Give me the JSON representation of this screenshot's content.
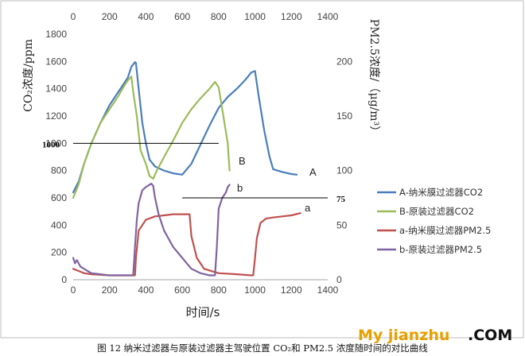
{
  "caption": "图 12 纳米过滤器与原装过滤器主驾驶位置 CO₂和 PM2.5 浓度随时间的对比曲线",
  "watermark": {
    "part1": "My jianzhu",
    "part2": ".COM"
  },
  "chart_data": {
    "type": "line",
    "xlabel": "时间/s",
    "ylabel_left": "CO₂浓度/ppm",
    "ylabel_right": "PM2.5浓度/（μg/m³）",
    "xlim": [
      0,
      1400
    ],
    "ylim_left": [
      0,
      1800
    ],
    "ylim_right": [
      0,
      225
    ],
    "x_ticks": [
      "0",
      "200",
      "400",
      "600",
      "800",
      "1000",
      "1200",
      "1400"
    ],
    "y_left_ticks": [
      "0",
      "200",
      "400",
      "600",
      "800",
      "1000",
      "1200",
      "1400",
      "1600",
      "1800"
    ],
    "y_right_ticks": [
      "0",
      "50",
      "75",
      "100",
      "150",
      "200"
    ],
    "grid": false,
    "legend_position": "right",
    "annotations": {
      "ref_1000": "1000",
      "ref_75": "75",
      "label_A": "A",
      "label_B": "B",
      "label_a": "a",
      "label_b": "b"
    },
    "reference_lines": [
      {
        "axis": "left",
        "y": 1000,
        "x_range": [
          0,
          800
        ]
      },
      {
        "axis": "right",
        "y": 75,
        "x_range": [
          600,
          1400
        ]
      }
    ],
    "series": [
      {
        "name": "A-纳米膜过滤器CO2",
        "axis": "left",
        "color": "#4a7ebb",
        "x": [
          0,
          30,
          60,
          100,
          150,
          200,
          250,
          300,
          320,
          340,
          345,
          360,
          380,
          400,
          420,
          450,
          500,
          550,
          600,
          650,
          700,
          750,
          800,
          850,
          900,
          950,
          980,
          1000,
          1020,
          1050,
          1080,
          1100,
          1150,
          1200,
          1230
        ],
        "y": [
          640,
          720,
          850,
          1000,
          1150,
          1280,
          1380,
          1480,
          1560,
          1595,
          1590,
          1400,
          1150,
          1000,
          880,
          830,
          800,
          780,
          770,
          850,
          990,
          1130,
          1260,
          1340,
          1400,
          1470,
          1520,
          1530,
          1350,
          1100,
          900,
          810,
          790,
          775,
          770
        ]
      },
      {
        "name": "B-原装过滤器CO2",
        "axis": "left",
        "color": "#9bbb59",
        "x": [
          0,
          30,
          60,
          100,
          150,
          200,
          250,
          280,
          300,
          320,
          330,
          350,
          370,
          400,
          420,
          440,
          460,
          500,
          550,
          600,
          650,
          700,
          750,
          780,
          800,
          820,
          850,
          860
        ],
        "y": [
          600,
          700,
          850,
          1000,
          1150,
          1250,
          1350,
          1420,
          1460,
          1490,
          1380,
          1200,
          950,
          850,
          760,
          740,
          800,
          900,
          1020,
          1150,
          1250,
          1330,
          1400,
          1450,
          1410,
          1250,
          1000,
          800
        ]
      },
      {
        "name": "a-纳米膜过滤器PM2.5",
        "axis": "right",
        "color": "#c0504d",
        "x": [
          0,
          30,
          60,
          100,
          200,
          300,
          340,
          345,
          360,
          400,
          450,
          500,
          550,
          600,
          640,
          650,
          680,
          720,
          800,
          900,
          980,
          990,
          1000,
          1010,
          1030,
          1060,
          1100,
          1150,
          1200,
          1250
        ],
        "y": [
          10,
          8,
          6,
          5,
          4,
          4,
          4,
          20,
          45,
          55,
          58,
          59,
          60,
          60,
          60,
          40,
          20,
          10,
          6,
          5,
          4,
          4,
          20,
          38,
          52,
          56,
          57,
          58,
          59,
          61
        ]
      },
      {
        "name": "b-原装过滤器PM2.5",
        "axis": "right",
        "color": "#8064a2",
        "x": [
          0,
          10,
          20,
          40,
          60,
          100,
          150,
          200,
          250,
          300,
          320,
          330,
          340,
          350,
          360,
          380,
          400,
          420,
          430,
          440,
          450,
          470,
          500,
          550,
          600,
          650,
          700,
          750,
          780,
          790,
          800,
          820,
          840,
          850,
          860
        ],
        "y": [
          20,
          15,
          18,
          12,
          10,
          6,
          5,
          4,
          4,
          4,
          4,
          4,
          30,
          55,
          70,
          82,
          85,
          87,
          88,
          86,
          75,
          60,
          45,
          30,
          20,
          10,
          6,
          4,
          4,
          30,
          65,
          75,
          80,
          85,
          87
        ]
      }
    ]
  }
}
